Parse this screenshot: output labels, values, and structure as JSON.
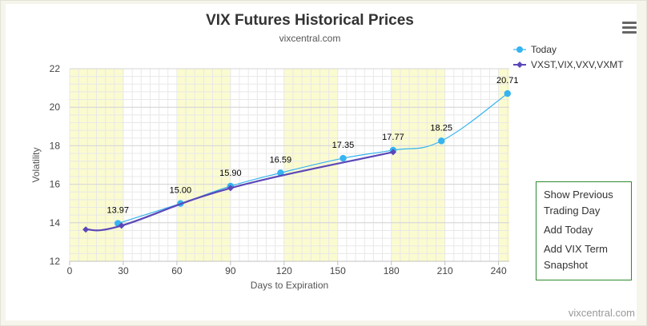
{
  "chart_data": {
    "type": "line",
    "title": "VIX Futures Historical Prices",
    "subtitle": "vixcentral.com",
    "xlabel": "Days to Expiration",
    "ylabel": "Volatility",
    "xlim": [
      0,
      246
    ],
    "ylim": [
      12,
      22
    ],
    "x_ticks": [
      0,
      30,
      60,
      90,
      120,
      150,
      180,
      210,
      240
    ],
    "y_ticks": [
      12,
      14,
      16,
      18,
      20,
      22
    ],
    "grid": true,
    "legend": "top-right",
    "series": [
      {
        "name": "Today",
        "color": "#35b4f0",
        "marker": "circle",
        "x": [
          27,
          62,
          90,
          118,
          153,
          181,
          208,
          245
        ],
        "y": [
          13.97,
          15.0,
          15.9,
          16.59,
          17.35,
          17.77,
          18.25,
          20.71
        ],
        "labels": [
          "13.97",
          "15.00",
          "15.90",
          "16.59",
          "17.35",
          "17.77",
          "18.25",
          "20.71"
        ]
      },
      {
        "name": "VXST,VIX,VXV,VXMT",
        "color": "#5b47b8",
        "marker": "diamond",
        "x": [
          9,
          29,
          90,
          181
        ],
        "y": [
          13.65,
          13.85,
          15.8,
          17.67
        ]
      }
    ]
  },
  "export_menu": {
    "items": [
      "Show Previous Trading Day",
      "Add Today",
      "Add VIX Term Snapshot"
    ]
  },
  "credits": "vixcentral.com"
}
